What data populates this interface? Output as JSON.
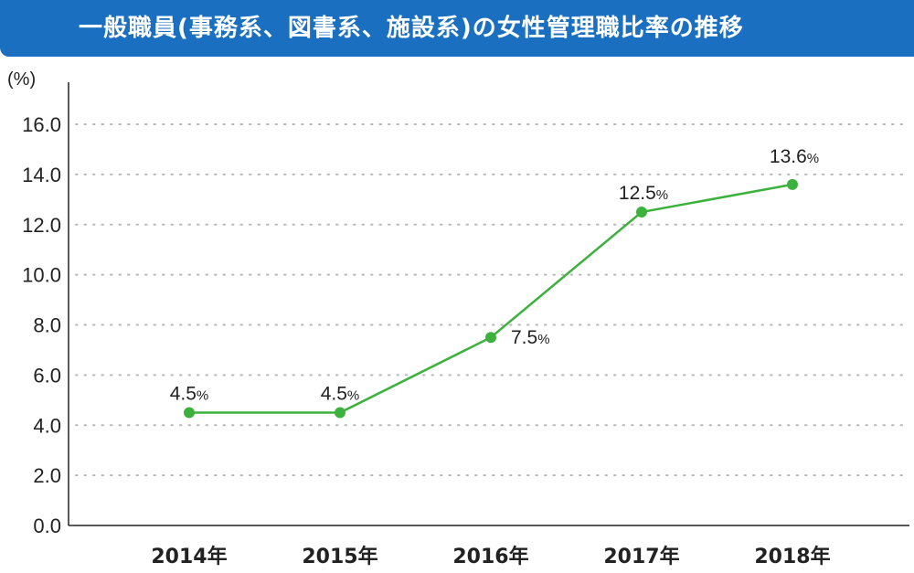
{
  "chart_data": {
    "type": "line",
    "title": "一般職員(事務系、図書系、施設系)の女性管理職比率の推移",
    "ylabel": "(%)",
    "xlabel": "",
    "ylim": [
      0,
      16
    ],
    "yticks": [
      "0.0",
      "2.0",
      "4.0",
      "6.0",
      "8.0",
      "10.0",
      "12.0",
      "14.0",
      "16.0"
    ],
    "ytick_values": [
      0,
      2,
      4,
      6,
      8,
      10,
      12,
      14,
      16
    ],
    "grid": true,
    "categories": [
      "2014年",
      "2015年",
      "2016年",
      "2017年",
      "2018年"
    ],
    "series": [
      {
        "name": "女性管理職比率",
        "color": "#3db13d",
        "values": [
          4.5,
          4.5,
          7.5,
          12.5,
          13.6
        ],
        "labels": [
          "4.5",
          "4.5",
          "7.5",
          "12.5",
          "13.6"
        ],
        "label_suffix": "%"
      }
    ]
  }
}
